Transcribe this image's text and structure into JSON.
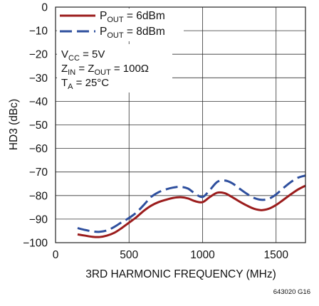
{
  "chart_data": {
    "type": "line",
    "xlabel": "3RD HARMONIC FREQUENCY (MHz)",
    "ylabel": "HD3 (dBc)",
    "xlim": [
      0,
      1700
    ],
    "ylim": [
      -100,
      0
    ],
    "x_ticks": [
      0,
      500,
      1000,
      1500
    ],
    "y_ticks": [
      0,
      -10,
      -20,
      -30,
      -40,
      -50,
      -60,
      -70,
      -80,
      -90,
      -100
    ],
    "grid": true,
    "legend_position": "top-left",
    "series": [
      {
        "name": "P_OUT = 6dBm",
        "name_parts": {
          "main": "P",
          "sub": "OUT",
          "rest": " = 6dBm"
        },
        "color": "#9b1c1c",
        "dash": "solid",
        "x": [
          150,
          200,
          250,
          300,
          350,
          400,
          450,
          500,
          550,
          600,
          650,
          700,
          750,
          800,
          850,
          900,
          950,
          1000,
          1050,
          1100,
          1150,
          1200,
          1250,
          1300,
          1350,
          1400,
          1450,
          1500,
          1550,
          1600,
          1650,
          1700
        ],
        "y": [
          -96.5,
          -97.0,
          -97.5,
          -97.6,
          -97.0,
          -95.8,
          -93.8,
          -91.5,
          -89.2,
          -86.5,
          -84.3,
          -82.8,
          -81.8,
          -81.0,
          -80.7,
          -81.2,
          -82.4,
          -82.8,
          -80.6,
          -78.8,
          -79.0,
          -80.6,
          -82.5,
          -84.2,
          -85.6,
          -86.2,
          -85.6,
          -84.0,
          -81.8,
          -79.5,
          -77.4,
          -75.8
        ]
      },
      {
        "name": "P_OUT = 8dBm",
        "name_parts": {
          "main": "P",
          "sub": "OUT",
          "rest": " = 8dBm"
        },
        "color": "#2e4f9e",
        "dash": "dashed",
        "x": [
          150,
          200,
          250,
          300,
          350,
          400,
          450,
          500,
          550,
          600,
          650,
          700,
          750,
          800,
          850,
          900,
          950,
          1000,
          1050,
          1100,
          1150,
          1200,
          1250,
          1300,
          1350,
          1400,
          1450,
          1500,
          1550,
          1600,
          1650,
          1700
        ],
        "y": [
          -93.8,
          -94.6,
          -95.2,
          -95.4,
          -94.8,
          -93.3,
          -91.3,
          -89.5,
          -87.2,
          -84.0,
          -80.6,
          -78.6,
          -77.4,
          -76.6,
          -76.3,
          -77.0,
          -79.2,
          -80.6,
          -77.6,
          -74.2,
          -73.6,
          -74.7,
          -77.0,
          -79.2,
          -81.0,
          -81.8,
          -81.4,
          -79.5,
          -76.8,
          -74.3,
          -72.4,
          -71.5
        ]
      }
    ],
    "annotations": [
      {
        "id": "vcc",
        "main": "V",
        "sub": "CC",
        "rest": " = 5V"
      },
      {
        "id": "zin",
        "text": "Z_IN = Z_OUT = 100Ω"
      },
      {
        "id": "ta",
        "main": "T",
        "sub": "A",
        "rest": " = 25°C"
      }
    ],
    "zin_parts": {
      "z1": "Z",
      "s1": "IN",
      "mid": " = Z",
      "s2": "OUT",
      "rest": " = 100Ω"
    },
    "figure_id": "643020 G16"
  }
}
